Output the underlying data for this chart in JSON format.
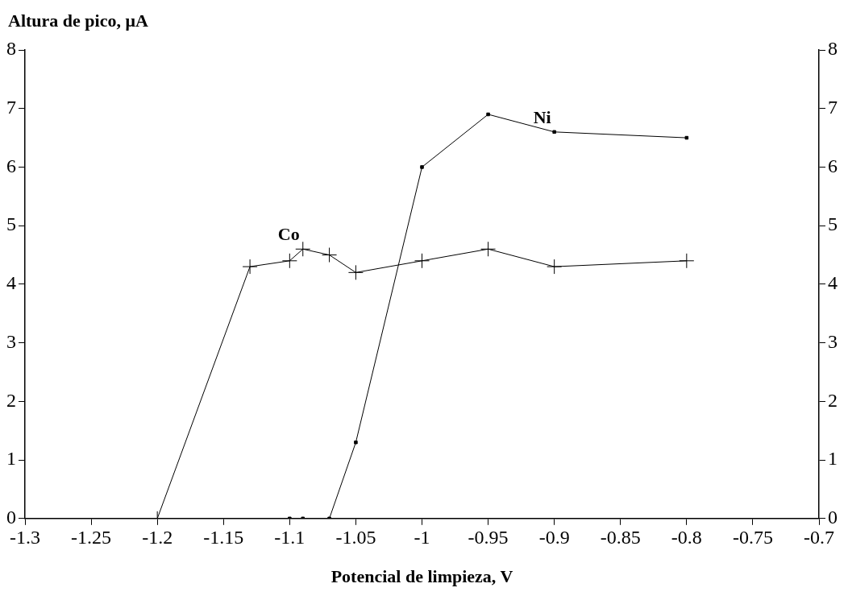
{
  "chart_data": {
    "type": "line",
    "xlabel": "Potencial de limpieza, V",
    "ylabel": "Altura de pico, μA",
    "series": [
      {
        "color": "#000000",
        "marker": "cross",
        "x": [
          -1.2,
          -1.13,
          -1.1,
          -1.09,
          -1.07,
          -1.05,
          -1.0,
          -0.95,
          -0.9,
          -0.8
        ],
        "values": [
          0,
          4.3,
          4.4,
          4.6,
          4.5,
          4.2,
          4.4,
          4.6,
          4.3,
          4.4
        ]
      },
      {
        "color": "#000000",
        "marker": "square",
        "x": [
          -1.1,
          -1.09,
          -1.07,
          -1.05,
          -1.0,
          -0.95,
          -0.9,
          -0.8
        ],
        "values": [
          0,
          0,
          0,
          1.3,
          6.0,
          6.9,
          6.6,
          6.5
        ]
      }
    ],
    "annotations": [
      {
        "text": "Co",
        "x": -1.09,
        "y": 4.6
      },
      {
        "text": "Ni",
        "x": -0.9,
        "y": 6.6
      }
    ],
    "xlim": [
      -1.3,
      -0.7
    ],
    "xticks": [
      -1.3,
      -1.25,
      -1.2,
      -1.15,
      -1.1,
      -1.05,
      -1,
      -0.95,
      -0.9,
      -0.85,
      -0.8,
      -0.75,
      -0.7
    ],
    "ylim": [
      0,
      8
    ],
    "yticks": [
      0,
      1,
      2,
      3,
      4,
      5,
      6,
      7,
      8
    ],
    "y2lim": [
      0,
      8
    ],
    "y2ticks": [
      0,
      1,
      2,
      3,
      4,
      5,
      6,
      7,
      8
    ],
    "grid": false,
    "legend": false,
    "line_style": "solid"
  }
}
